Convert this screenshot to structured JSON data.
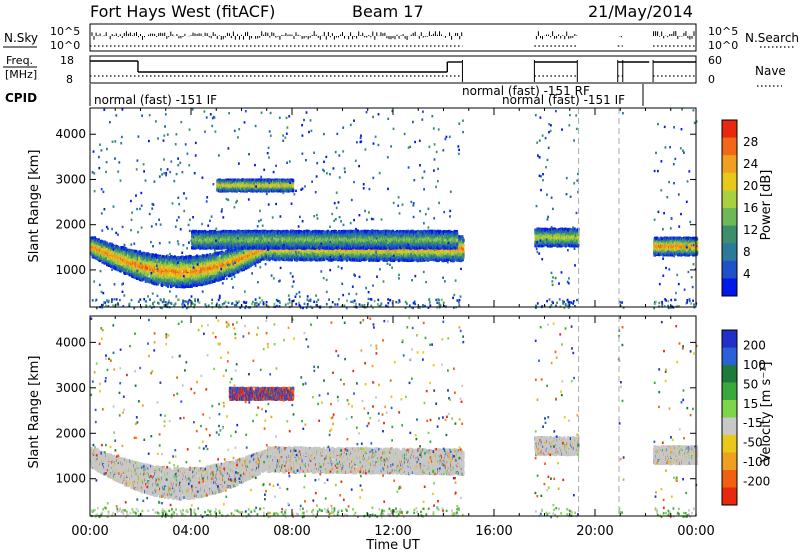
{
  "header": {
    "station": "Fort Hays West (fitACF)",
    "beam": "Beam 17",
    "date": "21/May/2014"
  },
  "strip": {
    "nsky_label": "N.Sky",
    "nsky_ticks": [
      "10^5",
      "10^0"
    ],
    "nsearch_label": "N.Search",
    "nsearch_ticks": [
      "10^5",
      "10^0"
    ],
    "freq_label": "Freq.",
    "freq_unit": "[MHz]",
    "freq_ticks": [
      "18",
      "8"
    ],
    "nave_label": "Nave",
    "nave_ticks": [
      "60",
      "0"
    ],
    "cpid_label": "CPID",
    "cpid_entries": [
      "normal (fast) -151 IF",
      "normal (fast) -151  RF",
      "normal (fast) -151 IF"
    ]
  },
  "chart_data": [
    {
      "type": "heatmap",
      "panel": "power",
      "ylabel": "Slant Range [km]",
      "y_ticks": [
        "1000",
        "2000",
        "3000",
        "4000"
      ],
      "ylim": [
        180,
        4580
      ],
      "colorbar_label": "Power [dB]",
      "colorbar_ticks": [
        "4",
        "8",
        "12",
        "16",
        "20",
        "24",
        "28"
      ],
      "colorbar_range": [
        0,
        32
      ],
      "colors": [
        "#0018e8",
        "#1f52c8",
        "#2a7a9a",
        "#3c8f6a",
        "#6fb858",
        "#a8d040",
        "#e8c818",
        "#f0a020",
        "#f06818",
        "#e82810"
      ],
      "features": [
        {
          "band": "main trace",
          "t_start": 0.0,
          "t_end": 14.75,
          "range_km_start": 1550,
          "range_km_end": 1500,
          "power_dB_peak": 28
        },
        {
          "band": "upper trace",
          "t_start": 4.0,
          "t_end": 14.5,
          "range_km_start": 1700,
          "range_km_end": 1700,
          "power_dB_peak": 16
        },
        {
          "band": "patch",
          "t_start": 5.0,
          "t_end": 8.0,
          "range_km_start": 2900,
          "range_km_end": 2900,
          "power_dB_peak": 24
        },
        {
          "band": "late trace",
          "t_start": 17.6,
          "t_end": 19.3,
          "range_km_start": 1750,
          "range_km_end": 1750,
          "power_dB_peak": 20
        },
        {
          "band": "late trace",
          "t_start": 22.3,
          "t_end": 24.0,
          "range_km_start": 1550,
          "range_km_end": 1550,
          "power_dB_peak": 28
        }
      ]
    },
    {
      "type": "heatmap",
      "panel": "velocity",
      "ylabel": "Slant Range [km]",
      "y_ticks": [
        "1000",
        "2000",
        "3000",
        "4000"
      ],
      "ylim": [
        180,
        4580
      ],
      "colorbar_label": "Velocity [m s⁻¹]",
      "colorbar_ticks": [
        "200",
        "100",
        "50",
        "15",
        "-15",
        "-50",
        "-100",
        "-200"
      ],
      "colors": [
        "#2030c8",
        "#2a60d8",
        "#1d7a3a",
        "#3aa83a",
        "#7ed44a",
        "#c8c8c8",
        "#e8c818",
        "#f0a020",
        "#f06010",
        "#e82810"
      ],
      "features": [
        {
          "band": "ground scatter",
          "t_start": 0.0,
          "t_end": 14.75,
          "range_km_start": 1500,
          "range_km_end": 1400,
          "velocity_ms": 0
        },
        {
          "band": "patch",
          "t_start": 5.5,
          "t_end": 8.0,
          "range_km_start": 2900,
          "range_km_end": 2900,
          "velocity_ms": 200
        },
        {
          "band": "late ground scatter",
          "t_start": 17.6,
          "t_end": 19.3,
          "range_km_start": 1750,
          "range_km_end": 1750,
          "velocity_ms": 0
        },
        {
          "band": "late ground scatter",
          "t_start": 22.3,
          "t_end": 24.0,
          "range_km_start": 1550,
          "range_km_end": 1550,
          "velocity_ms": 0
        }
      ]
    }
  ],
  "x_axis": {
    "ticks": [
      "00:00",
      "04:00",
      "08:00",
      "12:00",
      "16:00",
      "20:00",
      "00:00"
    ],
    "label": "Time UT",
    "xlim_hours": [
      0,
      24
    ]
  }
}
